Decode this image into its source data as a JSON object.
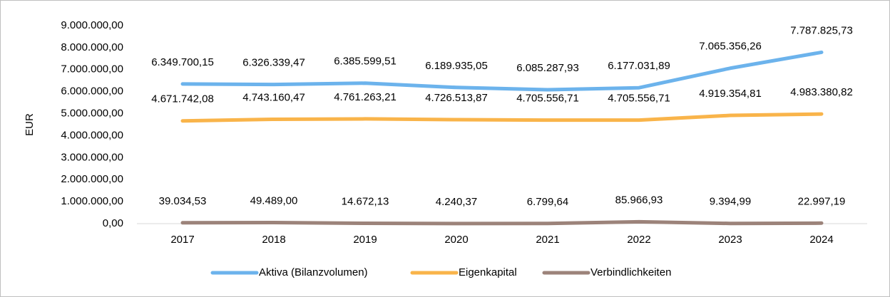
{
  "chart_data": {
    "type": "line",
    "y_label": "EUR",
    "categories": [
      "2017",
      "2018",
      "2019",
      "2020",
      "2021",
      "2022",
      "2023",
      "2024"
    ],
    "series": [
      {
        "name": "Aktiva (Bilanzvolumen)",
        "color": "#6cb3ec",
        "values": [
          6349700.15,
          6326339.47,
          6385599.51,
          6189935.05,
          6085287.93,
          6177031.89,
          7065356.26,
          7787825.73
        ],
        "value_labels": [
          "6.349.700,15",
          "6.326.339,47",
          "6.385.599,51",
          "6.189.935,05",
          "6.085.287,93",
          "6.177.031,89",
          "7.065.356,26",
          "7.787.825,73"
        ]
      },
      {
        "name": "Eigenkapital",
        "color": "#f9b44a",
        "values": [
          4671742.08,
          4743160.47,
          4761263.21,
          4726513.87,
          4705556.71,
          4705556.71,
          4919354.81,
          4983380.82
        ],
        "value_labels": [
          "4.671.742,08",
          "4.743.160,47",
          "4.761.263,21",
          "4.726.513,87",
          "4.705.556,71",
          "4.705.556,71",
          "4.919.354,81",
          "4.983.380,82"
        ]
      },
      {
        "name": "Verbindlichkeiten",
        "color": "#9c837a",
        "values": [
          39034.53,
          49489.0,
          14672.13,
          4240.37,
          6799.64,
          85966.93,
          9394.99,
          22997.19
        ],
        "value_labels": [
          "39.034,53",
          "49.489,00",
          "14.672,13",
          "4.240,37",
          "6.799,64",
          "85.966,93",
          "9.394,99",
          "22.997,19"
        ]
      }
    ],
    "ylim": [
      0,
      9000000
    ],
    "yticks": [
      {
        "value": 0,
        "label": "0,00"
      },
      {
        "value": 1000000,
        "label": "1.000.000,00"
      },
      {
        "value": 2000000,
        "label": "2.000.000,00"
      },
      {
        "value": 3000000,
        "label": "3.000.000,00"
      },
      {
        "value": 4000000,
        "label": "4.000.000,00"
      },
      {
        "value": 5000000,
        "label": "5.000.000,00"
      },
      {
        "value": 6000000,
        "label": "6.000.000,00"
      },
      {
        "value": 7000000,
        "label": "7.000.000,00"
      },
      {
        "value": 8000000,
        "label": "8.000.000,00"
      },
      {
        "value": 9000000,
        "label": "9.000.000,00"
      }
    ],
    "grid": false,
    "legend": "bottom"
  }
}
